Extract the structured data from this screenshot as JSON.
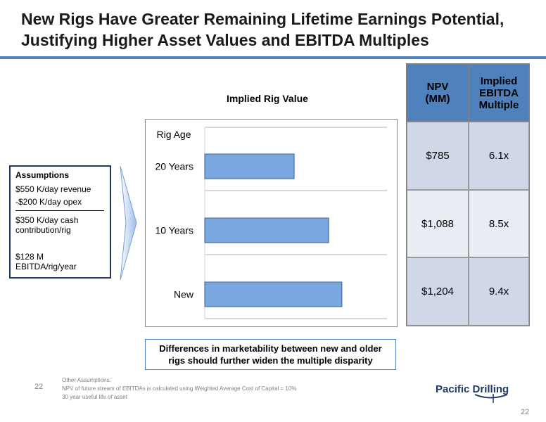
{
  "title": {
    "line1": "New Rigs Have Greater Remaining Lifetime Earnings Potential,",
    "line2": "Justifying Higher Asset Values and EBITDA Multiples"
  },
  "chart_data": {
    "type": "bar",
    "orientation": "horizontal",
    "title": "Implied Rig Value",
    "ylabel": "Rig Age",
    "categories": [
      "20 Years",
      "10 Years",
      "New"
    ],
    "values": [
      785,
      1088,
      1204
    ],
    "xlim": [
      0,
      1600
    ],
    "bar_color": "#7aa7e0",
    "grid": true
  },
  "assumptions": {
    "heading": "Assumptions",
    "revenue": "$550 K/day revenue",
    "opex": "-$200 K/day opex",
    "contribution": "$350 K/day cash contribution/rig",
    "ebitda": "$128 M EBITDA/rig/year"
  },
  "table": {
    "headers": [
      "NPV (MM)",
      "Implied EBITDA Multiple"
    ],
    "rows": [
      [
        "$785",
        "6.1x"
      ],
      [
        "$1,088",
        "8.5x"
      ],
      [
        "$1,204",
        "9.4x"
      ]
    ]
  },
  "note": "Differences in marketability between new and older rigs should further widen the multiple disparity",
  "footer": {
    "page_left": "22",
    "page_right": "22",
    "other_assumptions_title": "Other Assumptions:",
    "other_assumptions": [
      "NPV of future stream of EBITDAs is calculated using Weighted Average Cost of Capital = 10%",
      "30 year useful life of asset"
    ]
  },
  "logo": {
    "text": "Pacific Drilling"
  },
  "colors": {
    "accent": "#4f81bd",
    "navy": "#1f3864"
  }
}
